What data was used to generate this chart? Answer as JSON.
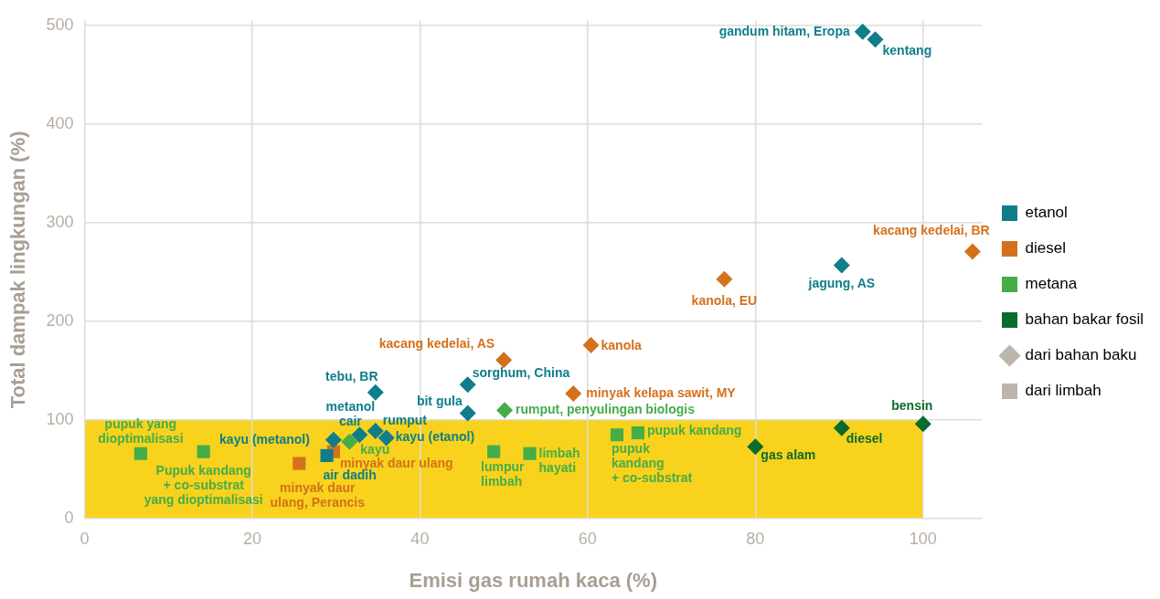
{
  "chart_data": {
    "type": "scatter",
    "xlabel": "Emisi gas rumah kaca (%)",
    "ylabel": "Total dampak lingkungan (%)",
    "xlim": [
      0,
      107
    ],
    "xticks": [
      0,
      20,
      40,
      60,
      80,
      100
    ],
    "ylim": [
      0,
      505
    ],
    "yticks": [
      0,
      100,
      200,
      300,
      400,
      500
    ],
    "grid": true,
    "legend": "right",
    "bands": [
      {
        "axis": "y",
        "from": 0,
        "to": 100,
        "color": "#f8d21c"
      }
    ],
    "series": [
      {
        "name": "etanol",
        "color": "#0f7e8a",
        "marker": "diamond",
        "x": [
          92.8,
          94.3,
          90.3,
          34.7,
          45.7,
          45.7,
          32.8,
          34.7,
          36.0,
          29.7
        ],
        "values": [
          494,
          486,
          257,
          128,
          136,
          107,
          85,
          89,
          82,
          80
        ]
      },
      {
        "color": "#0f7e8a",
        "marker": "square",
        "x": [
          28.9
        ],
        "values": [
          64
        ]
      },
      {
        "name": "diesel",
        "color": "#d4711c",
        "marker": "diamond",
        "x": [
          105.9,
          76.3,
          50.0,
          60.4,
          58.3
        ],
        "values": [
          271,
          243,
          161,
          176,
          127
        ]
      },
      {
        "color": "#d4711c",
        "marker": "square",
        "x": [
          29.7,
          25.6
        ],
        "values": [
          68,
          56
        ]
      },
      {
        "name": "metana",
        "color": "#45ad4a",
        "marker": "square",
        "x": [
          6.7,
          14.2,
          48.8,
          53.1,
          63.5,
          66.0
        ],
        "values": [
          66,
          68,
          68,
          66,
          85,
          87
        ]
      },
      {
        "color": "#45ad4a",
        "marker": "diamond",
        "x": [
          50.1,
          31.6
        ],
        "values": [
          110,
          78
        ]
      },
      {
        "name": "bahan bakar fosil",
        "color": "#0b6a2d",
        "marker": "diamond",
        "x": [
          100.0,
          90.3,
          80.0
        ],
        "values": [
          96,
          92,
          73
        ]
      },
      {
        "name": "dari bahan baku",
        "color": "#bcb5ac",
        "marker": "diamond"
      },
      {
        "name": "dari limbah",
        "color": "#bcb5ac",
        "marker": "square"
      }
    ],
    "annotations": [
      {
        "text": "gandum hitam, Eropa",
        "x": 92.8,
        "y": 494
      },
      {
        "text": "kentang",
        "x": 94.3,
        "y": 486
      },
      {
        "text": "jagung, AS",
        "x": 90.3,
        "y": 257
      },
      {
        "text": "kacang kedelai, BR",
        "x": 105.9,
        "y": 271
      },
      {
        "text": "kanola, EU",
        "x": 76.3,
        "y": 243
      },
      {
        "text": "kacang kedelai, AS",
        "x": 50.0,
        "y": 161
      },
      {
        "text": "kanola",
        "x": 60.4,
        "y": 176
      },
      {
        "text": "tebu, BR",
        "x": 34.7,
        "y": 128
      },
      {
        "text": "sorghum, China",
        "x": 45.7,
        "y": 136
      },
      {
        "text": "minyak kelapa sawit, MY",
        "x": 58.3,
        "y": 127
      },
      {
        "text": "bit gula",
        "x": 45.7,
        "y": 107
      },
      {
        "text": "rumput, penyulingan biologis",
        "x": 50.1,
        "y": 110
      },
      {
        "text": "metanol\ncair",
        "x": 32.8,
        "y": 85
      },
      {
        "text": "rumput",
        "x": 34.7,
        "y": 89
      },
      {
        "text": "kayu (etanol)",
        "x": 36.0,
        "y": 82
      },
      {
        "text": "kayu (metanol)",
        "x": 29.7,
        "y": 80
      },
      {
        "text": "kayu",
        "x": 31.6,
        "y": 78
      },
      {
        "text": "minyak daur ulang",
        "x": 29.7,
        "y": 68
      },
      {
        "text": "air dadih",
        "x": 28.9,
        "y": 64
      },
      {
        "text": "minyak daur\nulang, Perancis",
        "x": 25.6,
        "y": 56
      },
      {
        "text": "pupuk yang\ndioptimalisasi",
        "x": 6.7,
        "y": 66
      },
      {
        "text": "Pupuk kandang\n+ co-substrat\nyang dioptimalisasi",
        "x": 14.2,
        "y": 68
      },
      {
        "text": "lumpur\nlimbah",
        "x": 48.8,
        "y": 68
      },
      {
        "text": "limbah\nhayati",
        "x": 53.1,
        "y": 66
      },
      {
        "text": "pupuk\nkandang\n+ co-substrat",
        "x": 63.5,
        "y": 85
      },
      {
        "text": "pupuk kandang",
        "x": 66.0,
        "y": 87
      },
      {
        "text": "bensin",
        "x": 100.0,
        "y": 96
      },
      {
        "text": "diesel",
        "x": 90.3,
        "y": 92
      },
      {
        "text": "gas alam",
        "x": 80.0,
        "y": 73
      }
    ]
  }
}
